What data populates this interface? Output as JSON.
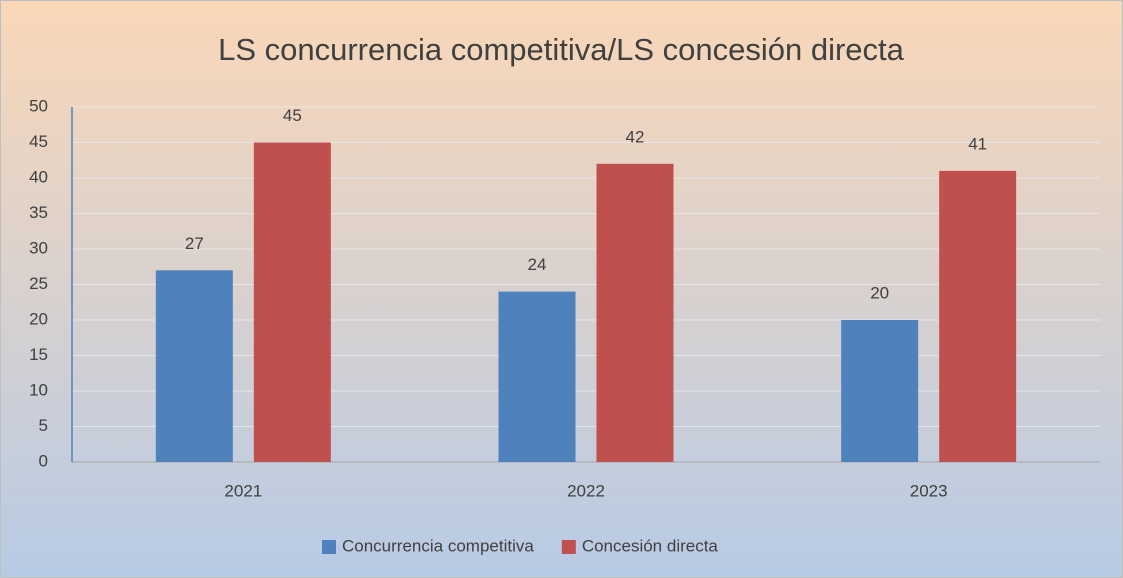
{
  "chart_data": {
    "type": "bar",
    "title": "LS concurrencia competitiva/LS concesión directa",
    "categories": [
      "2021",
      "2022",
      "2023"
    ],
    "series": [
      {
        "name": "Concurrencia competitiva",
        "color": "#4f81bd",
        "values": [
          27,
          24,
          20
        ]
      },
      {
        "name": "Concesión directa",
        "color": "#c0504d",
        "values": [
          45,
          42,
          41
        ]
      }
    ],
    "ylim": [
      0,
      50
    ],
    "yticks": [
      0,
      5,
      10,
      15,
      20,
      25,
      30,
      35,
      40,
      45,
      50
    ],
    "grid": true,
    "legend": "bottom"
  }
}
